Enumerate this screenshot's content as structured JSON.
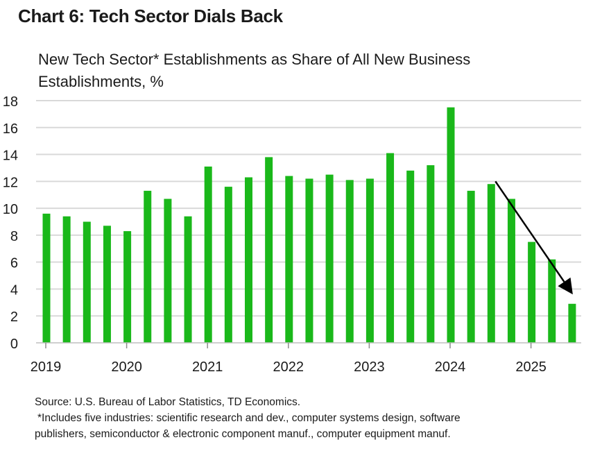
{
  "header": {
    "title": "Chart 6: Tech Sector Dials Back",
    "subtitle": "New Tech Sector* Establishments as Share of All New Business Establishments, %"
  },
  "chart_data": {
    "type": "bar",
    "title": "Chart 6: Tech Sector Dials Back",
    "ylabel": "New Tech Sector* Establishments as Share of All New Business Establishments, %",
    "xlabel": "",
    "ylim": [
      0,
      18
    ],
    "yticks": [
      0,
      2,
      4,
      6,
      8,
      10,
      12,
      14,
      16,
      18
    ],
    "grid": true,
    "x_tick_labels": [
      "2019",
      "2020",
      "2021",
      "2022",
      "2023",
      "2024",
      "2025"
    ],
    "bar_color": "#1ab81a",
    "values": [
      9.6,
      9.4,
      9.0,
      8.7,
      8.3,
      11.3,
      10.7,
      9.4,
      13.1,
      11.6,
      12.3,
      13.8,
      12.4,
      12.2,
      12.5,
      12.1,
      12.2,
      14.1,
      12.8,
      13.2,
      17.5,
      11.3,
      11.8,
      10.7,
      7.5,
      6.2,
      2.9
    ],
    "annotation": {
      "type": "arrow",
      "from_value": 12.0,
      "to_value": 3.6,
      "color": "#000000"
    }
  },
  "footer": {
    "source": "Source: U.S. Bureau of Labor Statistics, TD Economics.",
    "note_line1": "*Includes five industries: scientific research and dev., computer systems design, software",
    "note_line2": "publishers, semiconductor & electronic component manuf., computer equipment manuf."
  }
}
